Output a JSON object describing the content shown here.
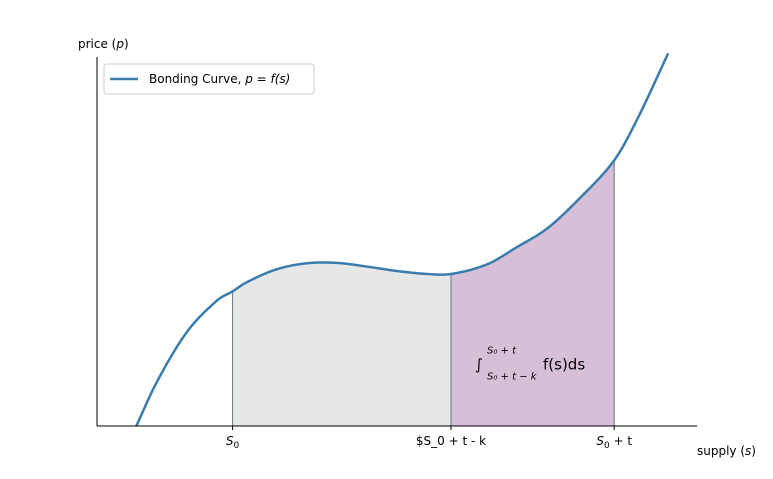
{
  "chart_data": {
    "type": "area",
    "title": "",
    "xlabel": "supply (s)",
    "ylabel": "price (p)",
    "xlim": [
      0,
      10
    ],
    "ylim": [
      0,
      10
    ],
    "grid": false,
    "legend_position": "upper-left",
    "series": [
      {
        "name": "Bonding Curve, p = f(s)",
        "color": "#3a7cad",
        "x": [
          0.6,
          1.0,
          1.5,
          2.0,
          2.26,
          2.5,
          3.0,
          3.5,
          4.0,
          4.5,
          5.0,
          5.5,
          5.9,
          6.5,
          7.0,
          7.5,
          8.0,
          8.62,
          9.0,
          9.52
        ],
        "y": [
          -0.2,
          1.2,
          2.55,
          3.4,
          3.65,
          3.9,
          4.25,
          4.41,
          4.42,
          4.32,
          4.2,
          4.12,
          4.12,
          4.38,
          4.85,
          5.35,
          6.1,
          7.2,
          8.3,
          10.1
        ]
      }
    ],
    "shaded_regions": [
      {
        "from": 2.26,
        "to": 5.9,
        "color": "#e6e8e8"
      },
      {
        "from": 5.9,
        "to": 8.62,
        "color": "#d8bfd8"
      }
    ],
    "x_ticks": [
      {
        "value": 2.26,
        "label": "S",
        "sub": "0",
        "extra": ""
      },
      {
        "value": 5.9,
        "label": "$S_0 + t - k",
        "sub": "",
        "extra": ""
      },
      {
        "value": 8.62,
        "label": "S",
        "sub": "0",
        "extra": " + t"
      }
    ],
    "annotation": {
      "x": 6.3,
      "y": 1.7,
      "integral_sign": "∫",
      "upper_limit": "S₀ + t",
      "lower_limit": "S₀ + t − k",
      "integrand": "f(s)ds"
    },
    "legend_label_prefix": "Bonding Curve, ",
    "legend_label_formula": "p = f(s)"
  }
}
